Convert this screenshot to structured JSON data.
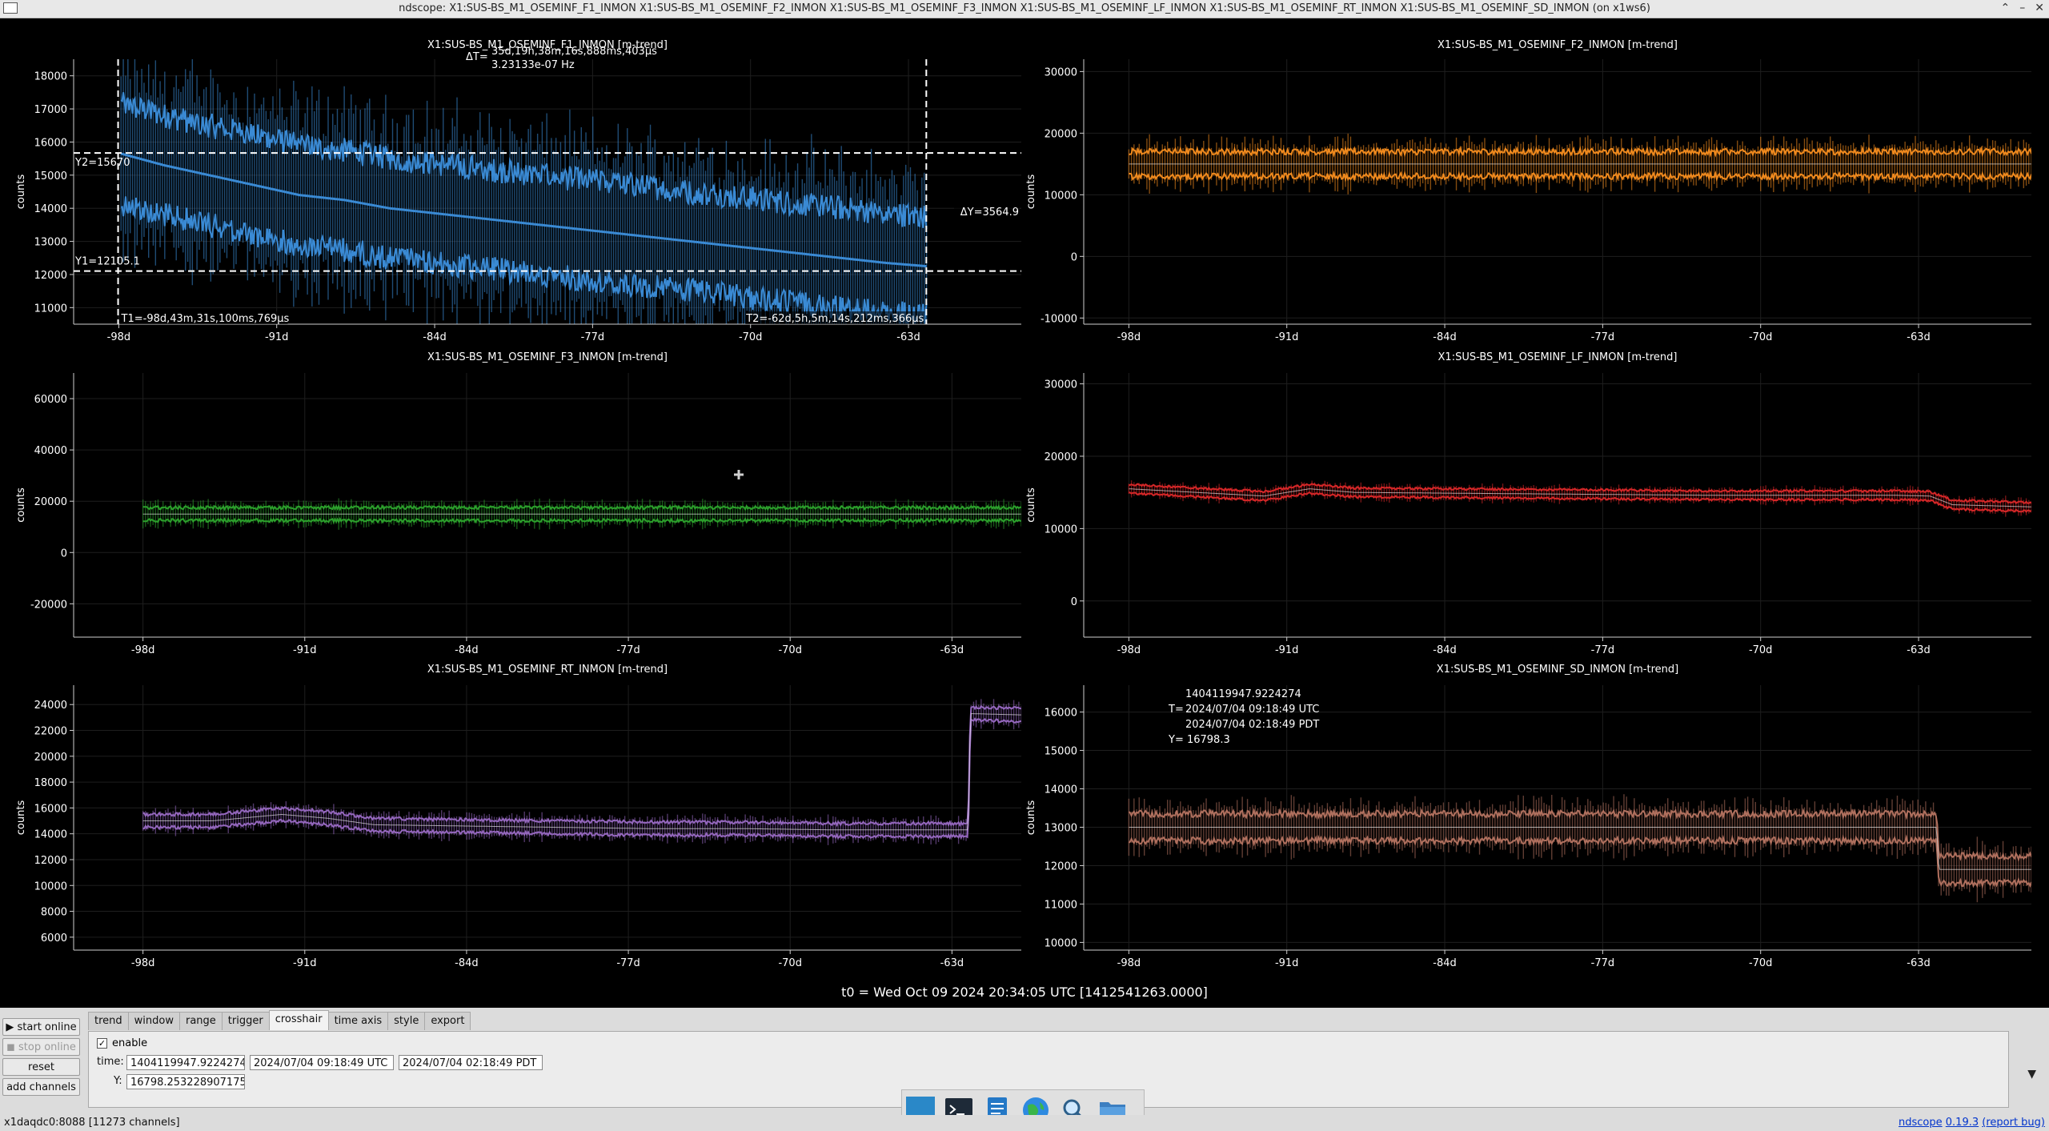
{
  "window": {
    "title": "ndscope: X1:SUS-BS_M1_OSEMINF_F1_INMON X1:SUS-BS_M1_OSEMINF_F2_INMON X1:SUS-BS_M1_OSEMINF_F3_INMON X1:SUS-BS_M1_OSEMINF_LF_INMON X1:SUS-BS_M1_OSEMINF_RT_INMON X1:SUS-BS_M1_OSEMINF_SD_INMON (on x1ws6)",
    "buttons": [
      "⌃",
      "–",
      "✕"
    ]
  },
  "chart_data": [
    {
      "type": "line",
      "title": "X1:SUS-BS_M1_OSEMINF_F1_INMON [m-trend]",
      "ylabel": "counts",
      "ylim": [
        10500,
        18500
      ],
      "yticks": [
        11000,
        12000,
        13000,
        14000,
        15000,
        16000,
        17000,
        18000
      ],
      "xlim": [
        -100,
        -58
      ],
      "xticks": [
        -98,
        -91,
        -84,
        -77,
        -70,
        -63
      ],
      "xticklabels": [
        "-98d",
        "-91d",
        "-84d",
        "-77d",
        "-70d",
        "-63d"
      ],
      "color": "#3a8ad4",
      "mean_x": [
        -97.9,
        -96,
        -94,
        -92,
        -90,
        -88,
        -86,
        -84,
        -82,
        -80,
        -78,
        -76,
        -74,
        -72,
        -70,
        -68,
        -66,
        -64,
        -62.2
      ],
      "mean_y": [
        15650,
        15300,
        15000,
        14700,
        14400,
        14250,
        14000,
        13850,
        13700,
        13550,
        13400,
        13250,
        13100,
        12950,
        12800,
        12650,
        12500,
        12350,
        12250
      ],
      "band_half": 1500,
      "cursors": {
        "T1": "T1=-98d,43m,31s,100ms,769µs",
        "T2": "T2=-62d,5h,5m,14s,212ms,366µs",
        "dT": "ΔT=",
        "dT_value": "35d,19h,38m,16s,888ms,403µs",
        "dT_freq": "3.23133e-07 Hz",
        "Y1": "Y1=12105.1",
        "Y2": "Y2=15670",
        "dY": "ΔY=3564.9",
        "t1_x": -98.03,
        "t2_x": -62.21,
        "y1": 12105.1,
        "y2": 15670
      }
    },
    {
      "type": "line",
      "title": "X1:SUS-BS_M1_OSEMINF_F2_INMON [m-trend]",
      "ylabel": "counts",
      "ylim": [
        -11000,
        32000
      ],
      "yticks": [
        -10000,
        0,
        10000,
        20000,
        30000
      ],
      "xlim": [
        -100,
        -58
      ],
      "xticks": [
        -98,
        -91,
        -84,
        -77,
        -70,
        -63
      ],
      "xticklabels": [
        "-98d",
        "-91d",
        "-84d",
        "-77d",
        "-70d",
        "-63d"
      ],
      "color": "#f08a1e",
      "mean_x": [
        -98,
        -58
      ],
      "mean_y": [
        15000,
        15000
      ],
      "band_half": 2000
    },
    {
      "type": "line",
      "title": "X1:SUS-BS_M1_OSEMINF_F3_INMON [m-trend]",
      "ylabel": "counts",
      "ylim": [
        -33000,
        70000
      ],
      "yticks": [
        -20000,
        0,
        20000,
        40000,
        60000
      ],
      "xlim": [
        -101,
        -60
      ],
      "xticks": [
        -98,
        -91,
        -84,
        -77,
        -70,
        -63
      ],
      "xticklabels": [
        "-98d",
        "-91d",
        "-84d",
        "-77d",
        "-70d",
        "-63d"
      ],
      "color": "#2ca02c",
      "mean_x": [
        -98,
        -60
      ],
      "mean_y": [
        15000,
        15000
      ],
      "band_half": 2500
    },
    {
      "type": "line",
      "title": "X1:SUS-BS_M1_OSEMINF_LF_INMON [m-trend]",
      "ylabel": "counts",
      "ylim": [
        -5000,
        31500
      ],
      "yticks": [
        0,
        10000,
        20000,
        30000
      ],
      "xlim": [
        -100,
        -58
      ],
      "xticks": [
        -98,
        -91,
        -84,
        -77,
        -70,
        -63
      ],
      "xticklabels": [
        "-98d",
        "-91d",
        "-84d",
        "-77d",
        "-70d",
        "-63d"
      ],
      "color": "#d62728",
      "mean_x": [
        -98,
        -95,
        -92,
        -90,
        -88,
        -84,
        -80,
        -76,
        -72,
        -68,
        -64,
        -62.5,
        -61.5,
        -58
      ],
      "mean_y": [
        15500,
        15000,
        14500,
        15500,
        15000,
        14900,
        14800,
        14700,
        14600,
        14600,
        14600,
        14500,
        13300,
        13000
      ],
      "band_half": 600
    },
    {
      "type": "line",
      "title": "X1:SUS-BS_M1_OSEMINF_RT_INMON [m-trend]",
      "ylabel": "counts",
      "ylim": [
        5000,
        25500
      ],
      "yticks": [
        6000,
        8000,
        10000,
        12000,
        14000,
        16000,
        18000,
        20000,
        22000,
        24000
      ],
      "xlim": [
        -101,
        -60
      ],
      "xticks": [
        -98,
        -91,
        -84,
        -77,
        -70,
        -63
      ],
      "xticklabels": [
        "-98d",
        "-91d",
        "-84d",
        "-77d",
        "-70d",
        "-63d"
      ],
      "color": "#9467bd",
      "mean_x": [
        -98,
        -95,
        -92,
        -90,
        -88,
        -84,
        -80,
        -76,
        -72,
        -68,
        -64,
        -62.3,
        -62.2,
        -60
      ],
      "mean_y": [
        15000,
        15000,
        15500,
        15200,
        14700,
        14600,
        14500,
        14400,
        14400,
        14300,
        14300,
        14300,
        23300,
        23200
      ],
      "band_half": 500
    },
    {
      "type": "line",
      "title": "X1:SUS-BS_M1_OSEMINF_SD_INMON [m-trend]",
      "ylabel": "counts",
      "ylim": [
        9800,
        16700
      ],
      "yticks": [
        10000,
        11000,
        12000,
        13000,
        14000,
        15000,
        16000
      ],
      "xlim": [
        -100,
        -58
      ],
      "xticks": [
        -98,
        -91,
        -84,
        -77,
        -70,
        -63
      ],
      "xticklabels": [
        "-98d",
        "-91d",
        "-84d",
        "-77d",
        "-70d",
        "-63d"
      ],
      "color": "#b0705e",
      "mean_x": [
        -98,
        -62.2,
        -62.1,
        -58
      ],
      "mean_y": [
        13000,
        13000,
        11900,
        11900
      ],
      "band_half": 350,
      "crosshair": {
        "gps": "1404119947.9224274",
        "t_label": "T=",
        "utc": "2024/07/04 09:18:49 UTC",
        "pdt": "2024/07/04 02:18:49 PDT",
        "y_label": "Y= 16798.3"
      }
    }
  ],
  "scope": {
    "t0": "t0 = Wed Oct 09 2024 20:34:05 UTC [1412541263.0000]"
  },
  "controls": {
    "start_online": "▶ start online",
    "stop_online": "◼ stop online",
    "reset": "reset",
    "add_channels": "add channels",
    "tabs": [
      "trend",
      "window",
      "range",
      "trigger",
      "crosshair",
      "time axis",
      "style",
      "export"
    ],
    "active_tab": "crosshair",
    "crosshair": {
      "enable_label": "enable",
      "check": "✓",
      "time_label": "time:",
      "time_gps": "1404119947.9224274",
      "time_utc": "2024/07/04 09:18:49 UTC",
      "time_pdt": "2024/07/04 02:18:49 PDT",
      "y_label": "Y:",
      "y_value": "16798.253228907175"
    },
    "expand_icon": "▼"
  },
  "status": {
    "left": "x1daqdc0:8088  [11273 channels]",
    "app_link": "ndscope",
    "version": "0.19.3",
    "report_bug": "(report bug)"
  },
  "taskbar": [
    "desktop-icon",
    "terminal-icon",
    "text-editor-icon",
    "web-browser-icon",
    "search-icon",
    "file-manager-icon"
  ]
}
